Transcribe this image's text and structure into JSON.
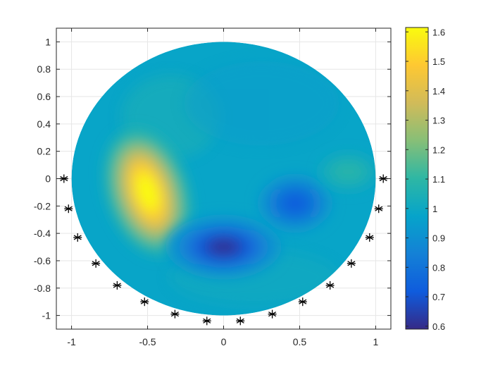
{
  "chart_data": {
    "type": "heatmap",
    "title": "",
    "xlabel": "",
    "ylabel": "",
    "xlim": [
      -1.1,
      1.1
    ],
    "ylim": [
      -1.1,
      1.1
    ],
    "grid": true,
    "x_ticks": [
      -1,
      -0.5,
      0,
      0.5,
      1
    ],
    "x_tick_labels": [
      "-1",
      "-0.5",
      "0",
      "0.5",
      "1"
    ],
    "y_ticks": [
      1,
      0.8,
      0.6,
      0.4,
      0.2,
      0,
      -0.2,
      -0.4,
      -0.6,
      -0.8,
      -1
    ],
    "y_tick_labels": [
      "1",
      "0.8",
      "0.6",
      "0.4",
      "0.2",
      "0",
      "-0.2",
      "-0.4",
      "-0.6",
      "-0.8",
      "-1"
    ],
    "domain": {
      "shape": "disk",
      "center": [
        0,
        0
      ],
      "radius": 1
    },
    "background_value": 0.98,
    "features": [
      {
        "kind": "high",
        "center": [
          -0.5,
          -0.1
        ],
        "value": 1.62
      },
      {
        "kind": "low",
        "center": [
          0.0,
          -0.5
        ],
        "value": 0.6
      },
      {
        "kind": "low",
        "center": [
          0.47,
          -0.18
        ],
        "value": 0.72
      },
      {
        "kind": "high",
        "center": [
          0.82,
          0.05
        ],
        "value": 1.08
      }
    ],
    "electrodes": [
      [
        -1.05,
        0
      ],
      [
        -1.02,
        -0.22
      ],
      [
        -0.96,
        -0.43
      ],
      [
        -0.84,
        -0.62
      ],
      [
        -0.7,
        -0.78
      ],
      [
        -0.52,
        -0.9
      ],
      [
        -0.32,
        -0.99
      ],
      [
        -0.11,
        -1.04
      ],
      [
        0.11,
        -1.04
      ],
      [
        0.32,
        -0.99
      ],
      [
        0.52,
        -0.9
      ],
      [
        0.7,
        -0.78
      ],
      [
        0.84,
        -0.62
      ],
      [
        0.96,
        -0.43
      ],
      [
        1.02,
        -0.22
      ],
      [
        1.05,
        0
      ]
    ],
    "colorbar": {
      "colormap": "parula",
      "range": [
        0.59,
        1.615
      ],
      "ticks": [
        1.6,
        1.5,
        1.4,
        1.3,
        1.2,
        1.1,
        1,
        0.9,
        0.8,
        0.7,
        0.6
      ],
      "tick_labels": [
        "1.6",
        "1.5",
        "1.4",
        "1.3",
        "1.2",
        "1.1",
        "1",
        "0.9",
        "0.8",
        "0.7",
        "0.6"
      ],
      "colors": [
        "#352a87",
        "#0f5cdd",
        "#1481d6",
        "#06a4ca",
        "#2eb7a4",
        "#87bf77",
        "#d1bb59",
        "#fec832",
        "#f9fb0e"
      ]
    }
  }
}
